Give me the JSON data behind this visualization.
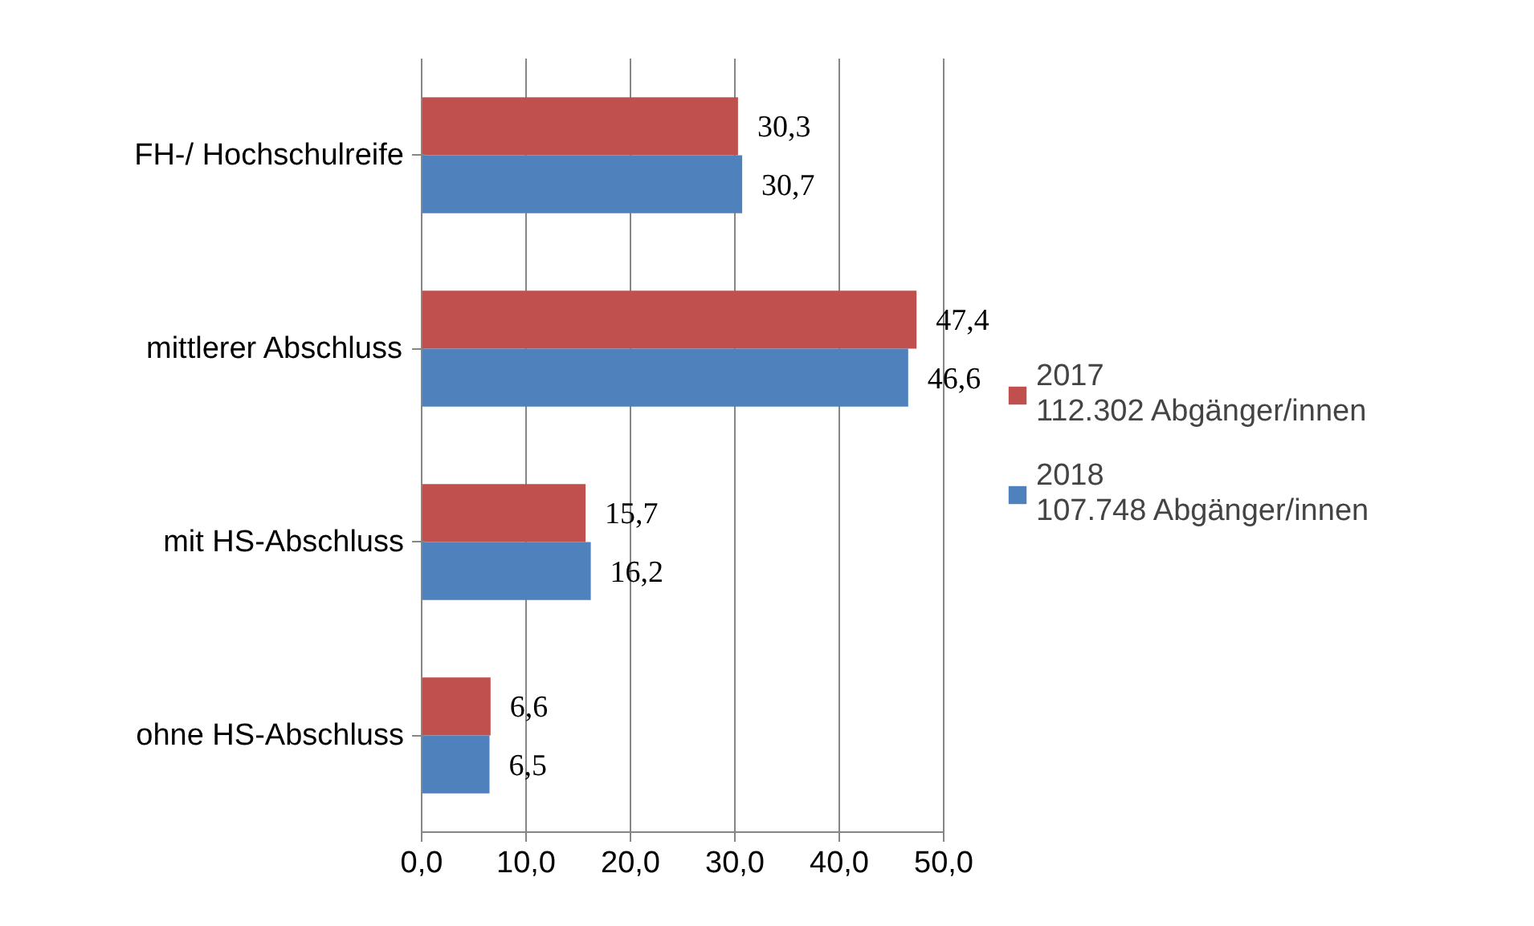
{
  "chart_data": {
    "type": "bar",
    "orientation": "horizontal",
    "categories": [
      "FH-/ Hochschulreife",
      "mittlerer Abschluss",
      "mit HS-Abschluss",
      "ohne HS-Abschluss"
    ],
    "series": [
      {
        "name": "2017\n112.302 Abgänger/innen",
        "color": "#c0504d",
        "values": [
          30.3,
          47.4,
          15.7,
          6.6
        ],
        "value_labels": [
          "30,3",
          "47,4",
          "15,7",
          "6,6"
        ]
      },
      {
        "name": "2018\n107.748 Abgänger/innen",
        "color": "#4f81bd",
        "values": [
          30.7,
          46.6,
          16.2,
          6.5
        ],
        "value_labels": [
          "30,7",
          "46,6",
          "16,2",
          "6,5"
        ]
      }
    ],
    "xlim": [
      0,
      50
    ],
    "xticks": [
      {
        "value": 0,
        "label": "0,0"
      },
      {
        "value": 10,
        "label": "10,0"
      },
      {
        "value": 20,
        "label": "20,0"
      },
      {
        "value": 30,
        "label": "30,0"
      },
      {
        "value": 40,
        "label": "40,0"
      },
      {
        "value": 50,
        "label": "50,0"
      }
    ],
    "grid": "x",
    "legend": "right"
  }
}
